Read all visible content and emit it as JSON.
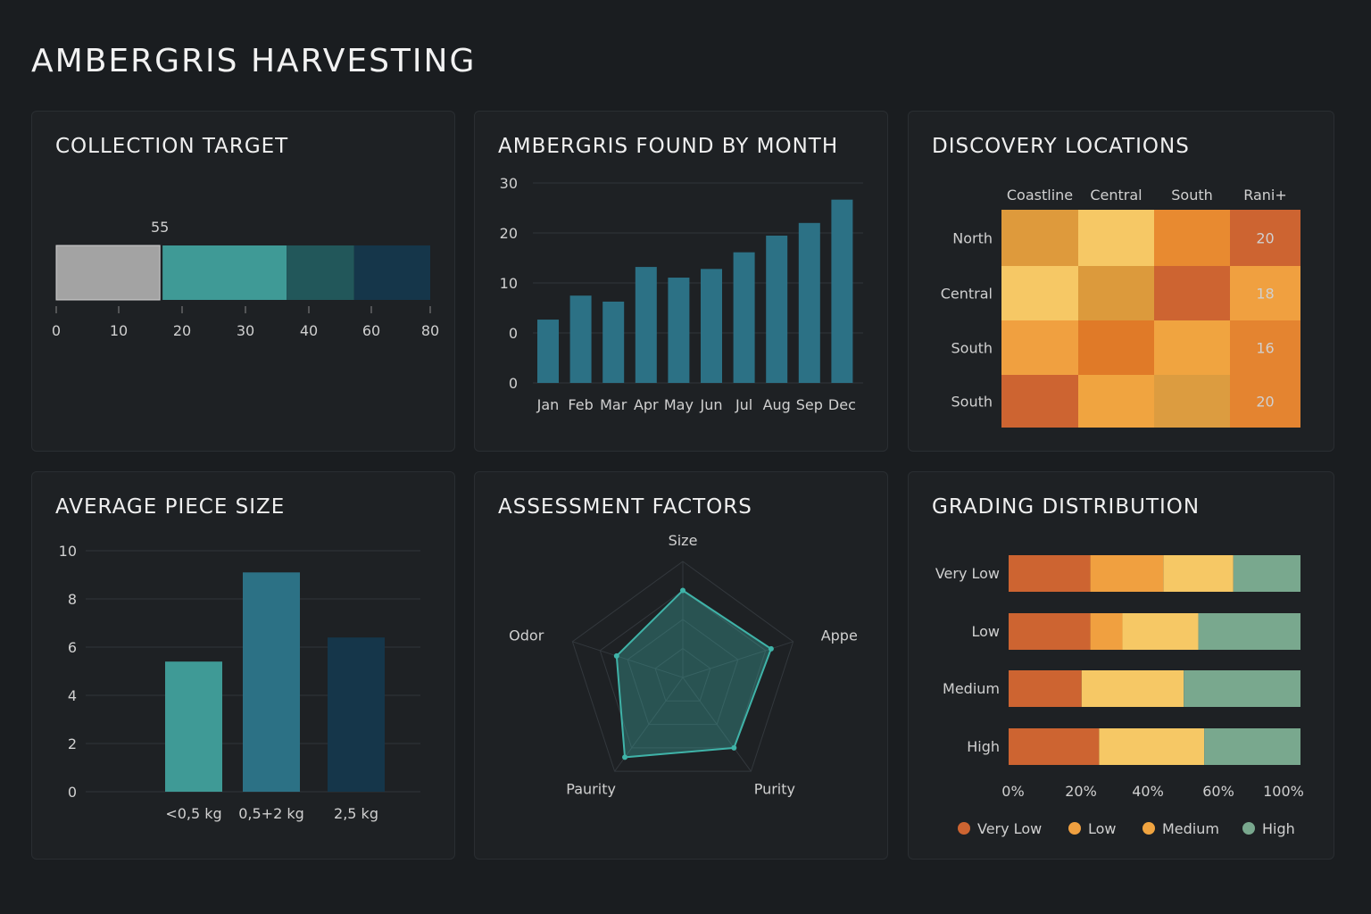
{
  "title": "AMBERGRIS HARVESTING",
  "panels": {
    "target": "COLLECTION TARGET",
    "month": "AMBERGRIS FOUND BY MONTH",
    "locations": "DISCOVERY LOCATIONS",
    "size": "AVERAGE PIECE SIZE",
    "factors": "ASSESSMENT FACTORS",
    "grading": "GRADING DISTRIBUTION"
  },
  "chart_data": [
    {
      "type": "bar",
      "id": "target",
      "title": "COLLECTION TARGET",
      "label": "55",
      "ticks": [
        "0",
        "10",
        "20",
        "30",
        "40",
        "60",
        "80"
      ],
      "segments": [
        {
          "end": 16.5,
          "color": "#a3a3a3"
        },
        {
          "end": 36.5,
          "color": "#3f9a96"
        },
        {
          "end": 54.5,
          "color": "#22575a"
        },
        {
          "end": 80,
          "color": "#15364a"
        }
      ]
    },
    {
      "type": "bar",
      "id": "month",
      "title": "AMBERGRIS FOUND BY MONTH",
      "categories": [
        "Jan",
        "Feb",
        "Mar",
        "Apr",
        "May",
        "Jun",
        "Jul",
        "Aug",
        "Sep",
        "Dec"
      ],
      "values": [
        9.5,
        13.1,
        12.2,
        17.4,
        15.8,
        17.1,
        19.6,
        22.1,
        24,
        27.5
      ],
      "ytick_labels": [
        "30",
        "20",
        "10",
        "0",
        "0"
      ],
      "ylim": [
        0,
        30
      ],
      "color": "#2c7185",
      "grid": true
    },
    {
      "type": "heatmap",
      "id": "locations",
      "title": "DISCOVERY LOCATIONS",
      "columns": [
        "Coastline",
        "Central",
        "South",
        "Rani+"
      ],
      "rows": [
        "North",
        "Central",
        "South",
        "South"
      ],
      "colors": [
        [
          "#de9a3c",
          "#f6c865",
          "#e88a30",
          "#cd6431"
        ],
        [
          "#f6c865",
          "#dc9a3c",
          "#cd6431",
          "#f0a040"
        ],
        [
          "#f0a040",
          "#e07a28",
          "#f0a440",
          "#e48430"
        ],
        [
          "#cd6431",
          "#f0a440",
          "#dc9c40",
          "#e48430"
        ]
      ],
      "labels": [
        [
          "",
          "",
          "",
          "20"
        ],
        [
          "",
          "",
          "",
          "18"
        ],
        [
          "",
          "",
          "",
          "16"
        ],
        [
          "",
          "",
          "",
          "20"
        ]
      ]
    },
    {
      "type": "bar",
      "id": "size",
      "title": "AVERAGE PIECE SIZE",
      "categories": [
        "<0,5 kg",
        "0,5+2 kg",
        "2,5 kg"
      ],
      "values": [
        5.4,
        9.1,
        6.4
      ],
      "ylim": [
        0,
        10
      ],
      "yticks": [
        "0",
        "2",
        "4",
        "6",
        "8",
        "10"
      ],
      "colors": [
        "#3f9a96",
        "#2c7185",
        "#15364a"
      ],
      "grid": true
    },
    {
      "type": "radar",
      "id": "factors",
      "title": "ASSESSMENT FACTORS",
      "axes": [
        "Size",
        "Appe",
        "Purity",
        "Paurity",
        "Odor"
      ],
      "values": [
        0.75,
        0.8,
        0.75,
        0.85,
        0.6
      ],
      "color": "#3fb3a8"
    },
    {
      "type": "bar",
      "id": "grading",
      "title": "GRADING DISTRIBUTION",
      "stacked": true,
      "orientation": "horizontal",
      "categories": [
        "Very Low",
        "Low",
        "Medium",
        "High"
      ],
      "series": [
        {
          "name": "Very Low",
          "values": [
            28,
            28,
            25,
            31
          ],
          "color": "#cd6431"
        },
        {
          "name": "Low",
          "values": [
            25,
            11,
            0,
            0
          ],
          "color": "#f0a040"
        },
        {
          "name": "Medium",
          "values": [
            24,
            26,
            35,
            36
          ],
          "color": "#f6c865"
        },
        {
          "name": "High",
          "values": [
            23,
            35,
            40,
            33
          ],
          "color": "#79a88e"
        }
      ],
      "xticks": [
        "0%",
        "20%",
        "40%",
        "60%",
        "100%"
      ],
      "legend": "bottom"
    }
  ]
}
